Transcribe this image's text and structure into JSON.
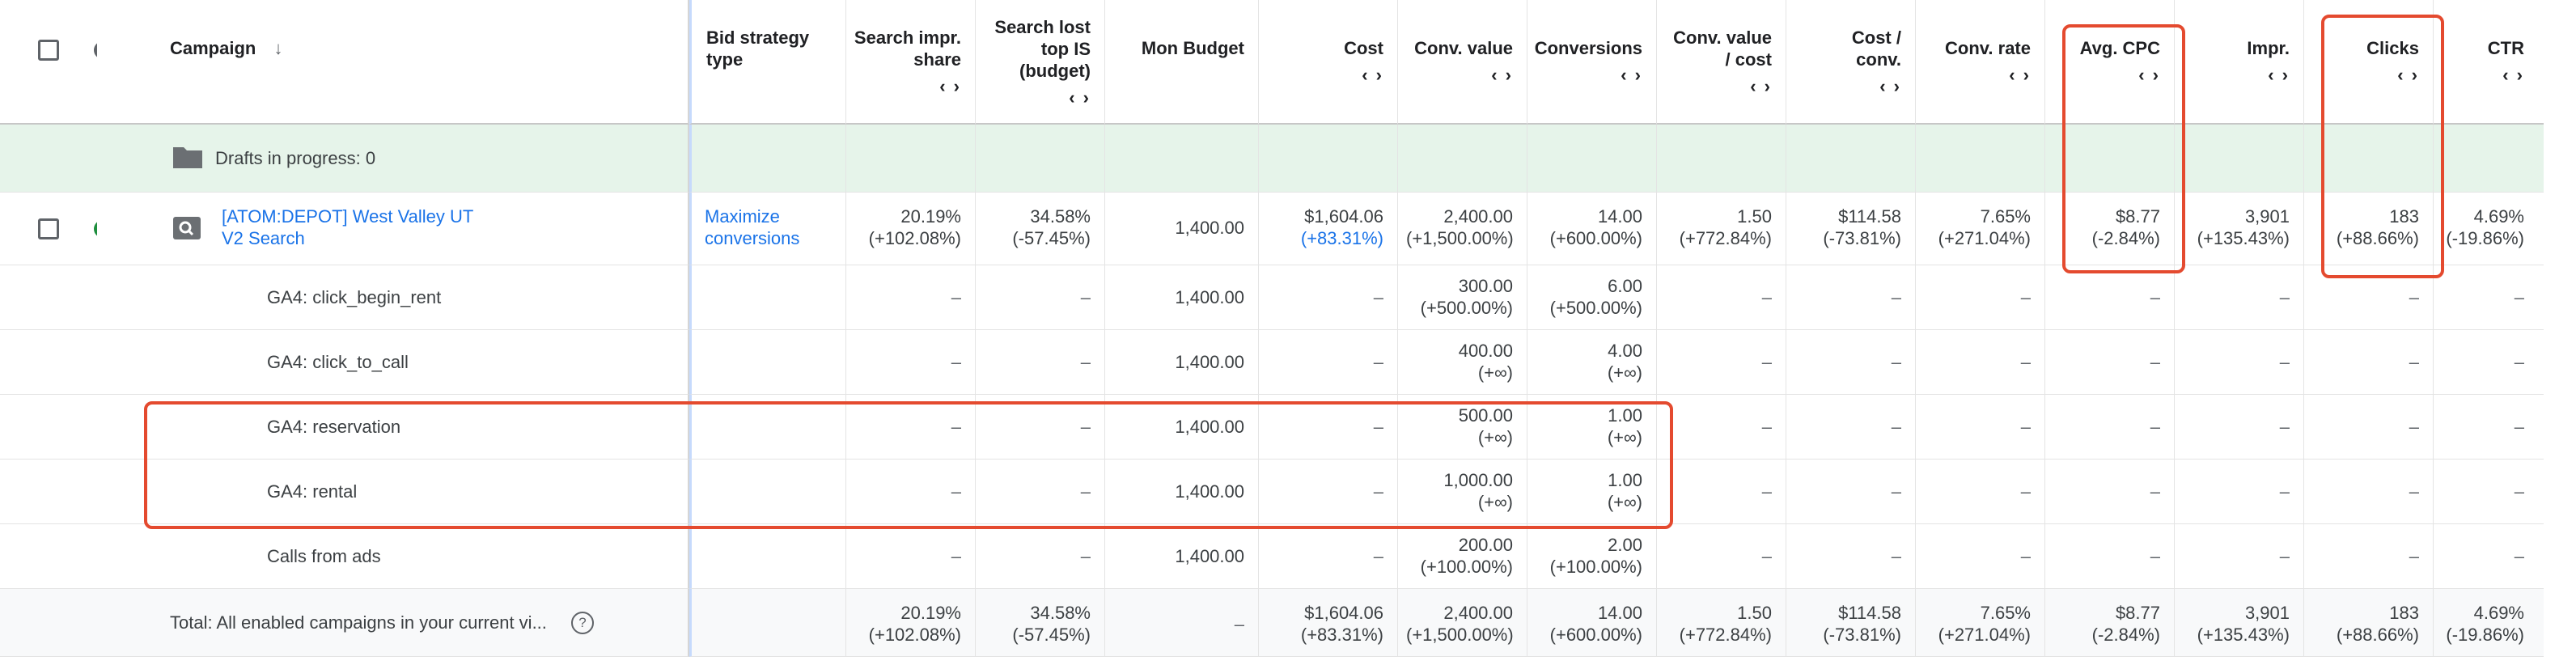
{
  "header": {
    "campaign_label": "Campaign",
    "sort_arrow": "↓",
    "bid_strategy_label": "Bid strategy type",
    "columns": [
      {
        "label": "Search impr. share",
        "arrows": "<>"
      },
      {
        "label": "Search lost top IS (budget)",
        "arrows": "<>"
      },
      {
        "label": "Mon Budget",
        "arrows": ""
      },
      {
        "label": "Cost",
        "arrows": "<>"
      },
      {
        "label": "Conv. value",
        "arrows": "<>"
      },
      {
        "label": "Conversions",
        "arrows": "<>"
      },
      {
        "label": "Conv. value / cost",
        "arrows": "<>"
      },
      {
        "label": "Cost / conv.",
        "arrows": "<>"
      },
      {
        "label": "Conv. rate",
        "arrows": "<>"
      },
      {
        "label": "Avg. CPC",
        "arrows": "<>"
      },
      {
        "label": "Impr.",
        "arrows": "<>"
      },
      {
        "label": "Clicks",
        "arrows": "<>"
      },
      {
        "label": "CTR",
        "arrows": "<>"
      }
    ]
  },
  "drafts": {
    "label": "Drafts in progress: 0"
  },
  "campaign": {
    "name_line1": "[ATOM:DEPOT] West Valley UT",
    "name_line2": "V2 Search",
    "bid_line1": "Maximize",
    "bid_line2": "conversions",
    "values": [
      {
        "v": "20.19%",
        "d": "(+102.08%)"
      },
      {
        "v": "34.58%",
        "d": "(-57.45%)"
      },
      {
        "v": "1,400.00",
        "d": ""
      },
      {
        "v": "$1,604.06",
        "d": "(+83.31%)"
      },
      {
        "v": "2,400.00",
        "d": "(+1,500.00%)"
      },
      {
        "v": "14.00",
        "d": "(+600.00%)"
      },
      {
        "v": "1.50",
        "d": "(+772.84%)"
      },
      {
        "v": "$114.58",
        "d": "(-73.81%)"
      },
      {
        "v": "7.65%",
        "d": "(+271.04%)"
      },
      {
        "v": "$8.77",
        "d": "(-2.84%)"
      },
      {
        "v": "3,901",
        "d": "(+135.43%)"
      },
      {
        "v": "183",
        "d": "(+88.66%)"
      },
      {
        "v": "4.69%",
        "d": "(-19.86%)"
      }
    ]
  },
  "subrows": [
    {
      "label": "GA4: click_begin_rent",
      "budget": "1,400.00",
      "conv_value": "300.00",
      "conv_value_d": "(+500.00%)",
      "conversions": "6.00",
      "conversions_d": "(+500.00%)"
    },
    {
      "label": "GA4: click_to_call",
      "budget": "1,400.00",
      "conv_value": "400.00",
      "conv_value_d": "(+∞)",
      "conversions": "4.00",
      "conversions_d": "(+∞)"
    },
    {
      "label": "GA4: reservation",
      "budget": "1,400.00",
      "conv_value": "500.00",
      "conv_value_d": "(+∞)",
      "conversions": "1.00",
      "conversions_d": "(+∞)"
    },
    {
      "label": "GA4: rental",
      "budget": "1,400.00",
      "conv_value": "1,000.00",
      "conv_value_d": "(+∞)",
      "conversions": "1.00",
      "conversions_d": "(+∞)"
    },
    {
      "label": "Calls from ads",
      "budget": "1,400.00",
      "conv_value": "200.00",
      "conv_value_d": "(+100.00%)",
      "conversions": "2.00",
      "conversions_d": "(+100.00%)"
    }
  ],
  "dash": "–",
  "total": {
    "label": "Total: All enabled campaigns in your current vi...",
    "help_icon": "?",
    "values": [
      {
        "v": "20.19%",
        "d": "(+102.08%)"
      },
      {
        "v": "34.58%",
        "d": "(-57.45%)"
      },
      {
        "v": "–",
        "d": ""
      },
      {
        "v": "$1,604.06",
        "d": "(+83.31%)"
      },
      {
        "v": "2,400.00",
        "d": "(+1,500.00%)"
      },
      {
        "v": "14.00",
        "d": "(+600.00%)"
      },
      {
        "v": "1.50",
        "d": "(+772.84%)"
      },
      {
        "v": "$114.58",
        "d": "(-73.81%)"
      },
      {
        "v": "7.65%",
        "d": "(+271.04%)"
      },
      {
        "v": "$8.77",
        "d": "(-2.84%)"
      },
      {
        "v": "3,901",
        "d": "(+135.43%)"
      },
      {
        "v": "183",
        "d": "(+88.66%)"
      },
      {
        "v": "4.69%",
        "d": "(-19.86%)"
      }
    ]
  },
  "colors": {
    "accent": "#1a73e8",
    "status_green": "#1e8e3e",
    "highlight": "#e44a2f",
    "drafts_bg": "#e6f4ea"
  }
}
